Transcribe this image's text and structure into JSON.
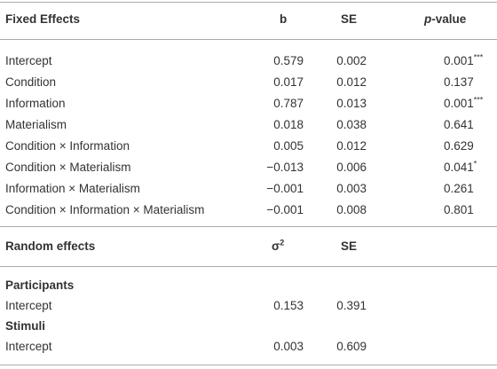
{
  "fixed_effects": {
    "header": {
      "label": "Fixed Effects",
      "b": "b",
      "se": "SE",
      "p_italic": "p",
      "p_rest": "-value"
    },
    "rows": [
      {
        "label": "Intercept",
        "b": "0.579",
        "se": "0.002",
        "p": "0.001",
        "sig": "***"
      },
      {
        "label": "Condition",
        "b": "0.017",
        "se": "0.012",
        "p": "0.137"
      },
      {
        "label": "Information",
        "b": "0.787",
        "se": "0.013",
        "p": "0.001",
        "sig": "***"
      },
      {
        "label": "Materialism",
        "b": "0.018",
        "se": "0.038",
        "p": "0.641"
      },
      {
        "label": "Condition × Information",
        "b": "0.005",
        "se": "0.012",
        "p": "0.629"
      },
      {
        "label": "Condition × Materialism",
        "b": "−0.013",
        "se": "0.006",
        "p": "0.041",
        "sig": "*"
      },
      {
        "label": "Information × Materialism",
        "b": "−0.001",
        "se": "0.003",
        "p": "0.261"
      },
      {
        "label": "Condition × Information × Materialism",
        "b": "−0.001",
        "se": "0.008",
        "p": "0.801"
      }
    ]
  },
  "random_effects": {
    "header": {
      "label": "Random effects",
      "sigma": "σ",
      "sigma_sup": "2",
      "se": "SE"
    },
    "groups": [
      {
        "name": "Participants",
        "rows": [
          {
            "label": "Intercept",
            "sigma2": "0.153",
            "se": "0.391"
          }
        ]
      },
      {
        "name": "Stimuli",
        "rows": [
          {
            "label": "Intercept",
            "sigma2": "0.003",
            "se": "0.609"
          }
        ]
      }
    ]
  }
}
